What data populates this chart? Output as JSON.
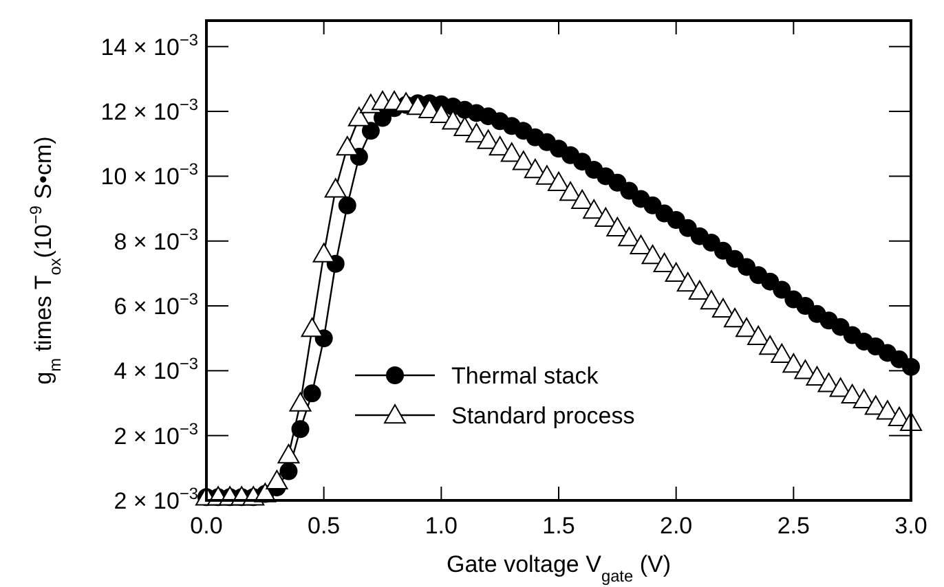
{
  "chart_data": {
    "type": "line",
    "xlabel": "Gate voltage V$_{gate}$ (V)",
    "ylabel": "g$_{m}$ times T$_{ox}$(10$^{−9}$ S•cm)",
    "xlim": [
      0,
      3
    ],
    "xticks": [
      {
        "value": 0,
        "label": "0.0"
      },
      {
        "value": 0.5,
        "label": "0.5"
      },
      {
        "value": 1,
        "label": "1.0"
      },
      {
        "value": 1.5,
        "label": "1.5"
      },
      {
        "value": 2,
        "label": "2.0"
      },
      {
        "value": 2.5,
        "label": "2.5"
      },
      {
        "value": 3,
        "label": "3.0"
      }
    ],
    "ylim": [
      0,
      0.0148
    ],
    "annotations": [
      "2 × 10$^{−3}$"
    ],
    "yticks": [
      {
        "value": 0,
        "label": null
      },
      {
        "value": 0.002,
        "label": "2 × 10$^{−3}$"
      },
      {
        "value": 0.004,
        "label": "4 × 10$^{−3}$"
      },
      {
        "value": 0.006,
        "label": "6 × 10$^{−3}$"
      },
      {
        "value": 0.008,
        "label": "8 × 10$^{−3}$"
      },
      {
        "value": 0.01,
        "label": "10 × 10$^{−3}$"
      },
      {
        "value": 0.012,
        "label": "12 × 10$^{−3}$"
      },
      {
        "value": 0.014,
        "label": "14 × 10$^{−3}$"
      }
    ],
    "grid": false,
    "legend": "bottom",
    "line_style": "solid",
    "x": [
      0,
      0.05,
      0.1,
      0.15,
      0.2,
      0.25,
      0.3,
      0.35,
      0.4,
      0.45,
      0.5,
      0.55,
      0.6,
      0.65,
      0.7,
      0.75,
      0.8,
      0.85,
      0.9,
      0.95,
      1,
      1.05,
      1.1,
      1.15,
      1.2,
      1.25,
      1.3,
      1.35,
      1.4,
      1.45,
      1.5,
      1.55,
      1.6,
      1.65,
      1.7,
      1.75,
      1.8,
      1.85,
      1.9,
      1.95,
      2,
      2.05,
      2.1,
      2.15,
      2.2,
      2.25,
      2.3,
      2.35,
      2.4,
      2.45,
      2.5,
      2.55,
      2.6,
      2.65,
      2.7,
      2.75,
      2.8,
      2.85,
      2.9,
      2.95,
      3
    ],
    "series": [
      {
        "name": "Thermal stack",
        "color": "#000000",
        "marker": "circle",
        "values": [
          0.0001,
          0.0001,
          0.0001,
          0.0001,
          0.0001,
          0.0002,
          0.0004,
          0.0009,
          0.0022,
          0.0033,
          0.005,
          0.0073,
          0.0091,
          0.0106,
          0.0114,
          0.0118,
          0.0121,
          0.0122,
          0.01225,
          0.01225,
          0.01222,
          0.01215,
          0.01205,
          0.01195,
          0.01185,
          0.0117,
          0.01155,
          0.0114,
          0.0112,
          0.01105,
          0.01085,
          0.01065,
          0.01045,
          0.0102,
          0.01,
          0.0098,
          0.00955,
          0.0093,
          0.0091,
          0.00885,
          0.00865,
          0.0084,
          0.00815,
          0.00795,
          0.0077,
          0.00745,
          0.0072,
          0.00695,
          0.00675,
          0.0065,
          0.0062,
          0.006,
          0.00575,
          0.00555,
          0.00535,
          0.0051,
          0.0049,
          0.00475,
          0.00455,
          0.00435,
          0.00412
        ]
      },
      {
        "name": "Standard process",
        "color": "#000000",
        "marker": "triangle",
        "values": [
          0.0001,
          0.0001,
          0.0001,
          0.0001,
          0.0001,
          0.0002,
          0.0006,
          0.0014,
          0.003,
          0.0053,
          0.0076,
          0.0096,
          0.0109,
          0.0118,
          0.0122,
          0.0123,
          0.0123,
          0.01225,
          0.01215,
          0.01205,
          0.0119,
          0.0117,
          0.0115,
          0.0113,
          0.0111,
          0.0109,
          0.0107,
          0.01045,
          0.0102,
          0.01,
          0.0098,
          0.0095,
          0.00925,
          0.00895,
          0.0087,
          0.0084,
          0.0081,
          0.00785,
          0.00755,
          0.0073,
          0.007,
          0.0067,
          0.00645,
          0.00615,
          0.0059,
          0.0056,
          0.0053,
          0.00505,
          0.00475,
          0.0045,
          0.0042,
          0.004,
          0.0038,
          0.0036,
          0.00345,
          0.00325,
          0.0031,
          0.0029,
          0.00275,
          0.00255,
          0.0024
        ]
      }
    ]
  }
}
